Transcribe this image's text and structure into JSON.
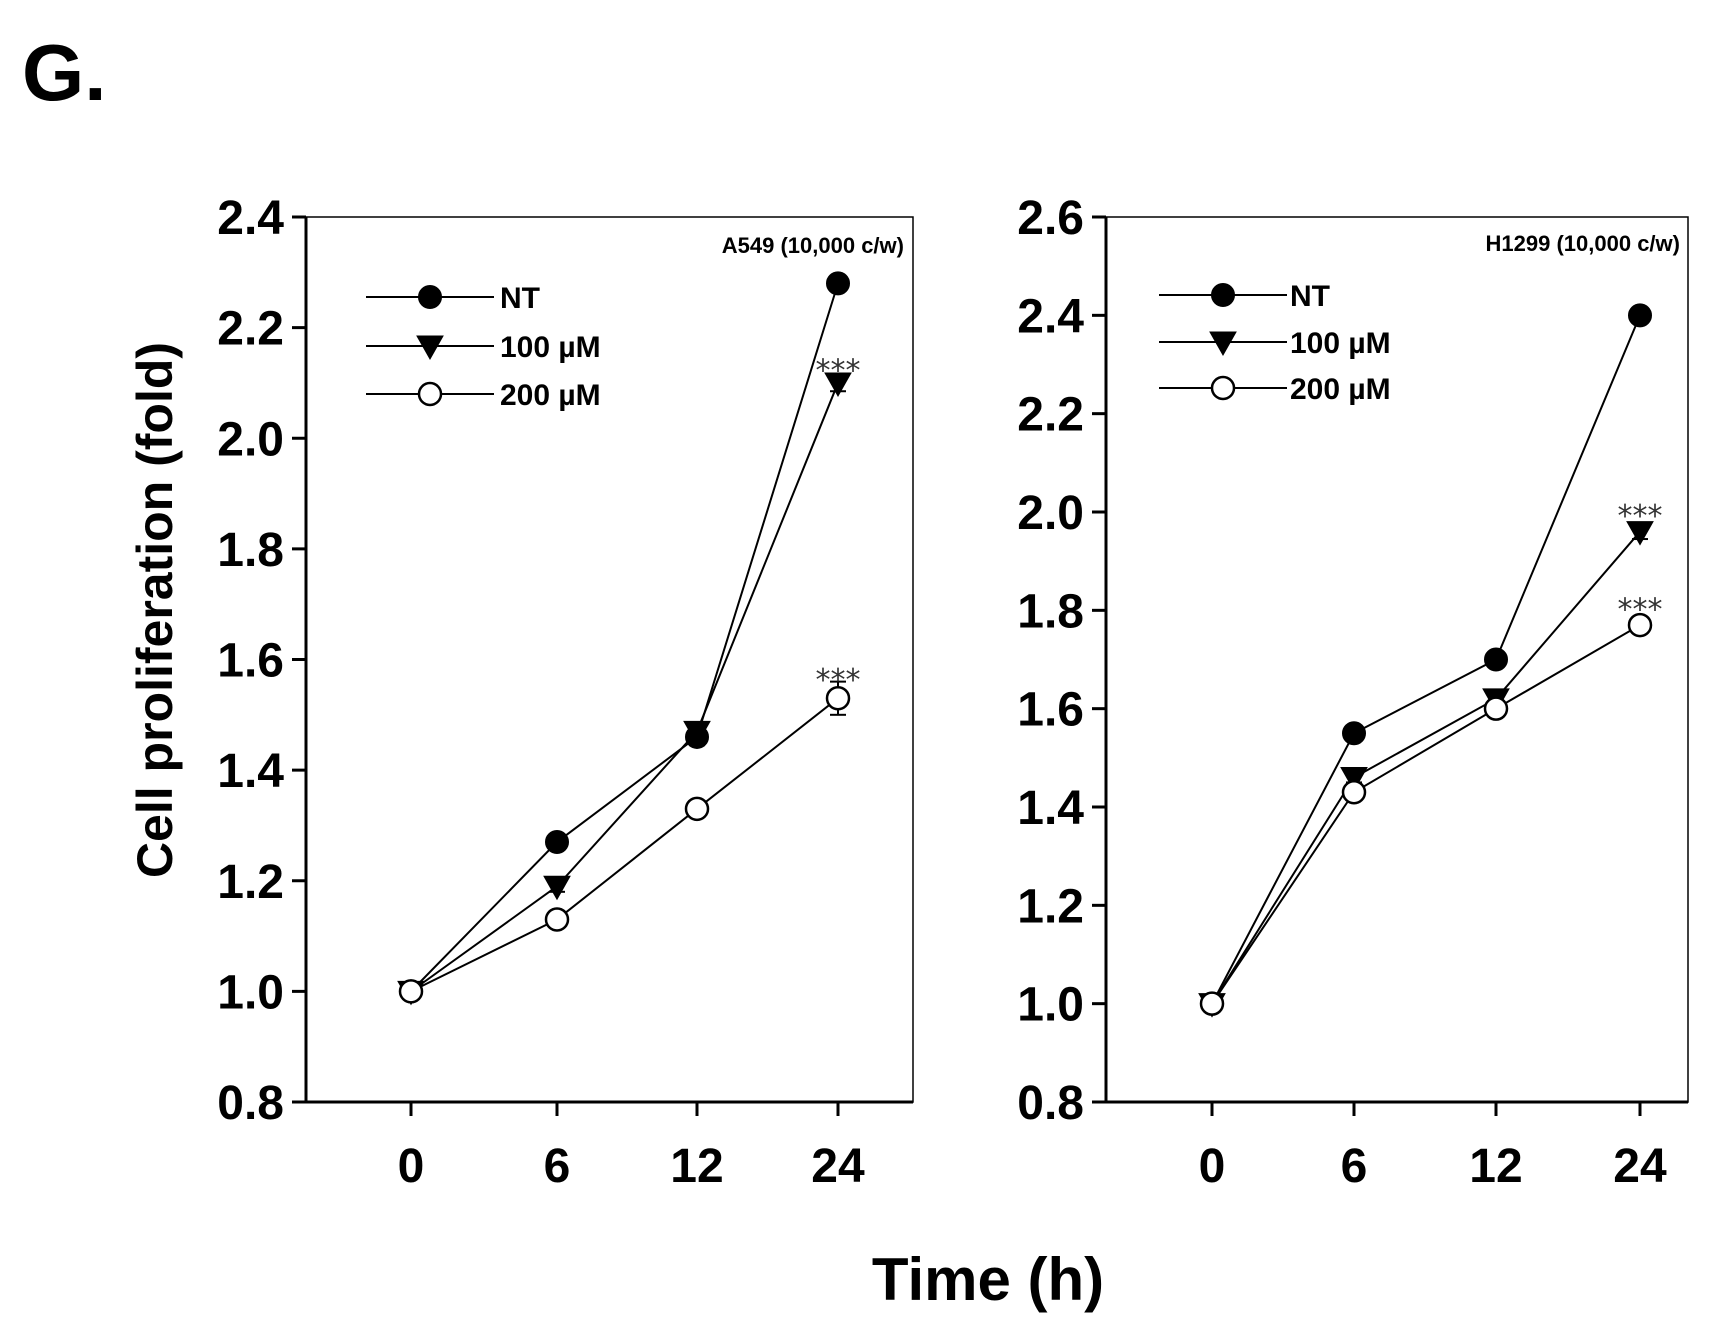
{
  "figure": {
    "panel_label": "G.",
    "xlabel": "Time (h)",
    "ylabel": "Cell proliferation (fold)"
  },
  "chart_data": [
    {
      "type": "line",
      "title": "A549 (10,000 c/w)",
      "categories": [
        "0",
        "6",
        "12",
        "24"
      ],
      "ylim": [
        0.8,
        2.4
      ],
      "yticks": [
        "0.8",
        "1.0",
        "1.2",
        "1.4",
        "1.6",
        "1.8",
        "2.0",
        "2.2",
        "2.4"
      ],
      "legend": [
        "NT",
        "100 µM",
        "200 µM"
      ],
      "series": [
        {
          "name": "NT",
          "marker": "circle-filled",
          "values": [
            1.0,
            1.27,
            1.46,
            2.28
          ],
          "errors": [
            0.01,
            0.01,
            0.015,
            0.01
          ]
        },
        {
          "name": "100 µM",
          "marker": "triangle-down",
          "values": [
            1.0,
            1.19,
            1.47,
            2.1
          ],
          "errors": [
            0.01,
            0.01,
            0.015,
            0.015
          ]
        },
        {
          "name": "200 µM",
          "marker": "circle-open",
          "values": [
            1.0,
            1.13,
            1.33,
            1.53
          ],
          "errors": [
            0.01,
            0.01,
            0.01,
            0.03
          ]
        }
      ],
      "annotations": [
        {
          "text": "***",
          "x": "24",
          "y": 2.13
        },
        {
          "text": "***",
          "x": "24",
          "y": 1.57
        }
      ]
    },
    {
      "type": "line",
      "title": "H1299 (10,000 c/w)",
      "categories": [
        "0",
        "6",
        "12",
        "24"
      ],
      "ylim": [
        0.8,
        2.6
      ],
      "yticks": [
        "0.8",
        "1.0",
        "1.2",
        "1.4",
        "1.6",
        "1.8",
        "2.0",
        "2.2",
        "2.4",
        "2.6"
      ],
      "legend": [
        "NT",
        "100 µM",
        "200 µM"
      ],
      "series": [
        {
          "name": "NT",
          "marker": "circle-filled",
          "values": [
            1.0,
            1.55,
            1.7,
            2.4
          ],
          "errors": [
            0.01,
            0.01,
            0.01,
            0.01
          ]
        },
        {
          "name": "100 µM",
          "marker": "triangle-down",
          "values": [
            1.0,
            1.46,
            1.62,
            1.96
          ],
          "errors": [
            0.01,
            0.01,
            0.015,
            0.015
          ]
        },
        {
          "name": "200 µM",
          "marker": "circle-open",
          "values": [
            1.0,
            1.43,
            1.6,
            1.77
          ],
          "errors": [
            0.01,
            0.01,
            0.015,
            0.01
          ]
        }
      ],
      "annotations": [
        {
          "text": "***",
          "x": "24",
          "y": 2.0
        },
        {
          "text": "***",
          "x": "24",
          "y": 1.81
        }
      ]
    }
  ]
}
